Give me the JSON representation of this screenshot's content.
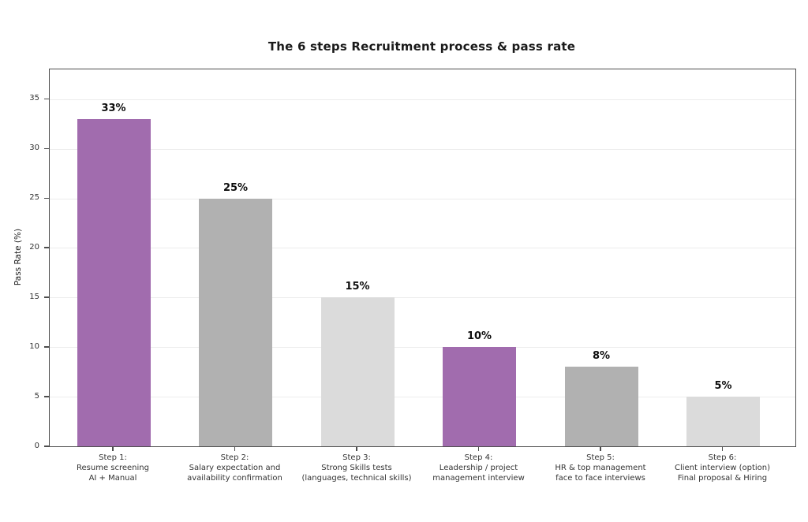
{
  "chart_data": {
    "type": "bar",
    "title": "The 6 steps Recruitment process & pass rate",
    "xlabel": "",
    "ylabel": "Pass Rate (%)",
    "ylim": [
      0,
      38
    ],
    "yticks": [
      0,
      5,
      10,
      15,
      20,
      25,
      30,
      35
    ],
    "grid": true,
    "legend": "none",
    "categories": [
      [
        "Step 1:",
        "Resume screening",
        "AI + Manual"
      ],
      [
        "Step 2:",
        "Salary expectation and",
        "availability confirmation"
      ],
      [
        "Step 3:",
        "Strong Skills tests",
        "(languages, technical skills)"
      ],
      [
        "Step 4:",
        "Leadership / project",
        "management interview"
      ],
      [
        "Step 5:",
        "HR & top management",
        "face to face interviews"
      ],
      [
        "Step 6:",
        "Client interview (option)",
        "Final proposal & Hiring"
      ]
    ],
    "values": [
      33,
      25,
      15,
      10,
      8,
      5
    ],
    "value_labels": [
      "33%",
      "25%",
      "15%",
      "10%",
      "8%",
      "5%"
    ],
    "bar_colors": [
      "#a16cae",
      "#b1b1b1",
      "#dbdbdb",
      "#a16cae",
      "#b1b1b1",
      "#dbdbdb"
    ]
  },
  "colors": {
    "accent_purple": "#a16cae",
    "gray_medium": "#b1b1b1",
    "gray_light": "#dbdbdb",
    "spine": "#4d4d4d",
    "gridline": "#ececec",
    "background": "#ffffff",
    "text": "#1a1a1a"
  }
}
